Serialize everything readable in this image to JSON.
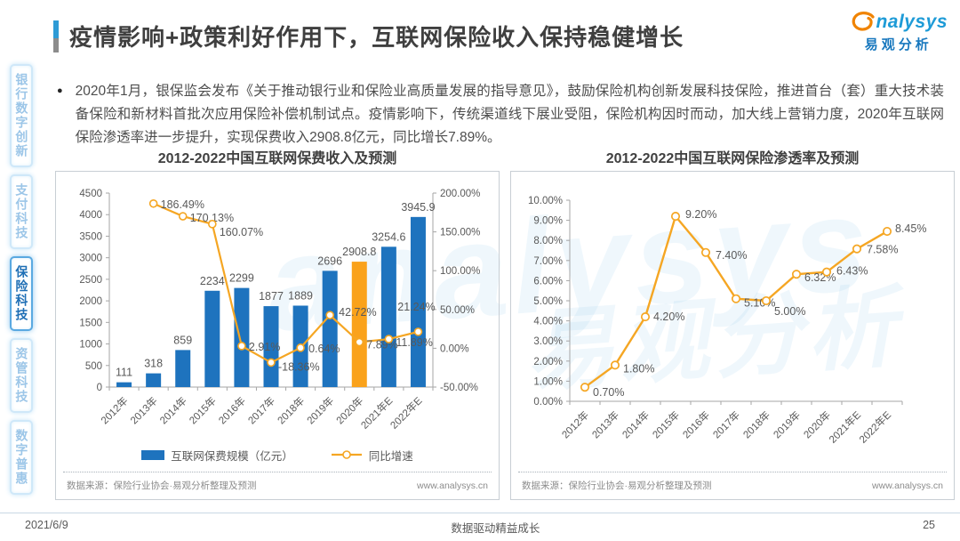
{
  "header": {
    "title": "疫情影响+政策利好作用下，互联网保险收入保持稳健增长"
  },
  "logo": {
    "latin": "nalysys",
    "cn": "易观分析"
  },
  "watermark": {
    "latin": "analysys",
    "cn": "易观分析"
  },
  "sidebar": {
    "items": [
      {
        "label": "银行数字创新",
        "active": false
      },
      {
        "label": "支付科技",
        "active": false
      },
      {
        "label": "保险科技",
        "active": true
      },
      {
        "label": "资管科技",
        "active": false
      },
      {
        "label": "数字普惠",
        "active": false
      }
    ]
  },
  "body": {
    "bullet": "●",
    "text": "2020年1月，银保监会发布《关于推动银行业和保险业高质量发展的指导意见》，鼓励保险机构创新发展科技保险，推进首台（套）重大技术装备保险和新材料首批次应用保险补偿机制试点。疫情影响下，传统渠道线下展业受阻，保险机构因时而动，加大线上营销力度，2020年互联网保险渗透率进一步提升，实现保费收入2908.8亿元，同比增长7.89%。"
  },
  "chart_data": [
    {
      "type": "bar+line",
      "title": "2012-2022中国互联网保费收入及预测",
      "categories": [
        "2012年",
        "2013年",
        "2014年",
        "2015年",
        "2016年",
        "2017年",
        "2018年",
        "2019年",
        "2020年",
        "2021年E",
        "2022年E"
      ],
      "series": [
        {
          "name": "互联网保费规模（亿元）",
          "type": "bar",
          "values": [
            111,
            318,
            859,
            2234,
            2299,
            1877,
            1889,
            2696,
            2908.8,
            3254.6,
            3945.9
          ],
          "labels": [
            "111",
            "318",
            "859",
            "2234",
            "2299",
            "1877",
            "1889",
            "2696",
            "2908.8",
            "3254.6",
            "3945.9"
          ],
          "color": "#1e73be",
          "highlight_index": 8,
          "highlight_color": "#faa21b"
        },
        {
          "name": "同比增速",
          "type": "line",
          "values": [
            null,
            186.49,
            170.13,
            160.07,
            2.91,
            -18.36,
            0.64,
            42.72,
            7.89,
            11.89,
            21.24
          ],
          "labels": [
            null,
            "186.49%",
            "170.13%",
            "160.07%",
            "2.91%",
            "-18.36%",
            "0.64%",
            "42.72%",
            "7.89%",
            "11.89%",
            "21.24%"
          ],
          "color": "#f5a623"
        }
      ],
      "y_left": {
        "min": 0,
        "max": 4500,
        "step": 500
      },
      "y_right": {
        "min": -50,
        "max": 200,
        "step": 50,
        "format": "percent"
      },
      "legend_position": "bottom",
      "grid": false,
      "source": "数据来源：保险行业协会·易观分析整理及预测",
      "website": "www.analysys.cn"
    },
    {
      "type": "line",
      "title": "2012-2022中国互联网保险渗透率及预测",
      "categories": [
        "2012年",
        "2013年",
        "2014年",
        "2015年",
        "2016年",
        "2017年",
        "2018年",
        "2019年",
        "2020年",
        "2021年E",
        "2022年E"
      ],
      "series": [
        {
          "name": "互联网保险渗透率",
          "type": "line",
          "values": [
            0.7,
            1.8,
            4.2,
            9.2,
            7.4,
            5.1,
            5.0,
            6.32,
            6.43,
            7.58,
            8.45
          ],
          "labels": [
            "0.70%",
            "1.80%",
            "4.20%",
            "9.20%",
            "7.40%",
            "5.10%",
            "5.00%",
            "6.32%",
            "6.43%",
            "7.58%",
            "8.45%"
          ],
          "color": "#f5a623"
        }
      ],
      "y_left": {
        "min": 0,
        "max": 10,
        "step": 1,
        "format": "percent"
      },
      "grid": false,
      "source": "数据来源：保险行业协会·易观分析整理及预测",
      "website": "www.analysys.cn"
    }
  ],
  "footer": {
    "date": "2021/6/9",
    "center": "数据驱动精益成长",
    "page_number": "25"
  }
}
